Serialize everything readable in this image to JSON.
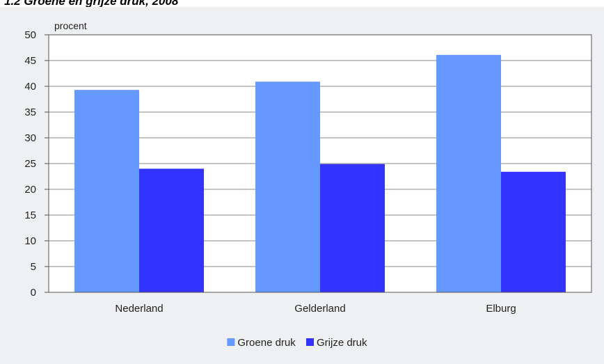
{
  "title": "1.2 Groene en grijze druk, 2008",
  "chart_data": {
    "type": "bar",
    "title": "1.2 Groene en grijze druk, 2008",
    "xlabel": "",
    "ylabel": "procent",
    "categories": [
      "Nederland",
      "Gelderland",
      "Elburg"
    ],
    "series": [
      {
        "name": "Groene druk",
        "color": "#6699ff",
        "values": [
          39.3,
          40.9,
          46.1
        ]
      },
      {
        "name": "Grijze druk",
        "color": "#3333ff",
        "values": [
          24.0,
          24.9,
          23.4
        ]
      }
    ],
    "ylim": [
      0,
      50
    ],
    "yticks": [
      0,
      5,
      10,
      15,
      20,
      25,
      30,
      35,
      40,
      45,
      50
    ],
    "grid": true,
    "legend_position": "bottom"
  }
}
